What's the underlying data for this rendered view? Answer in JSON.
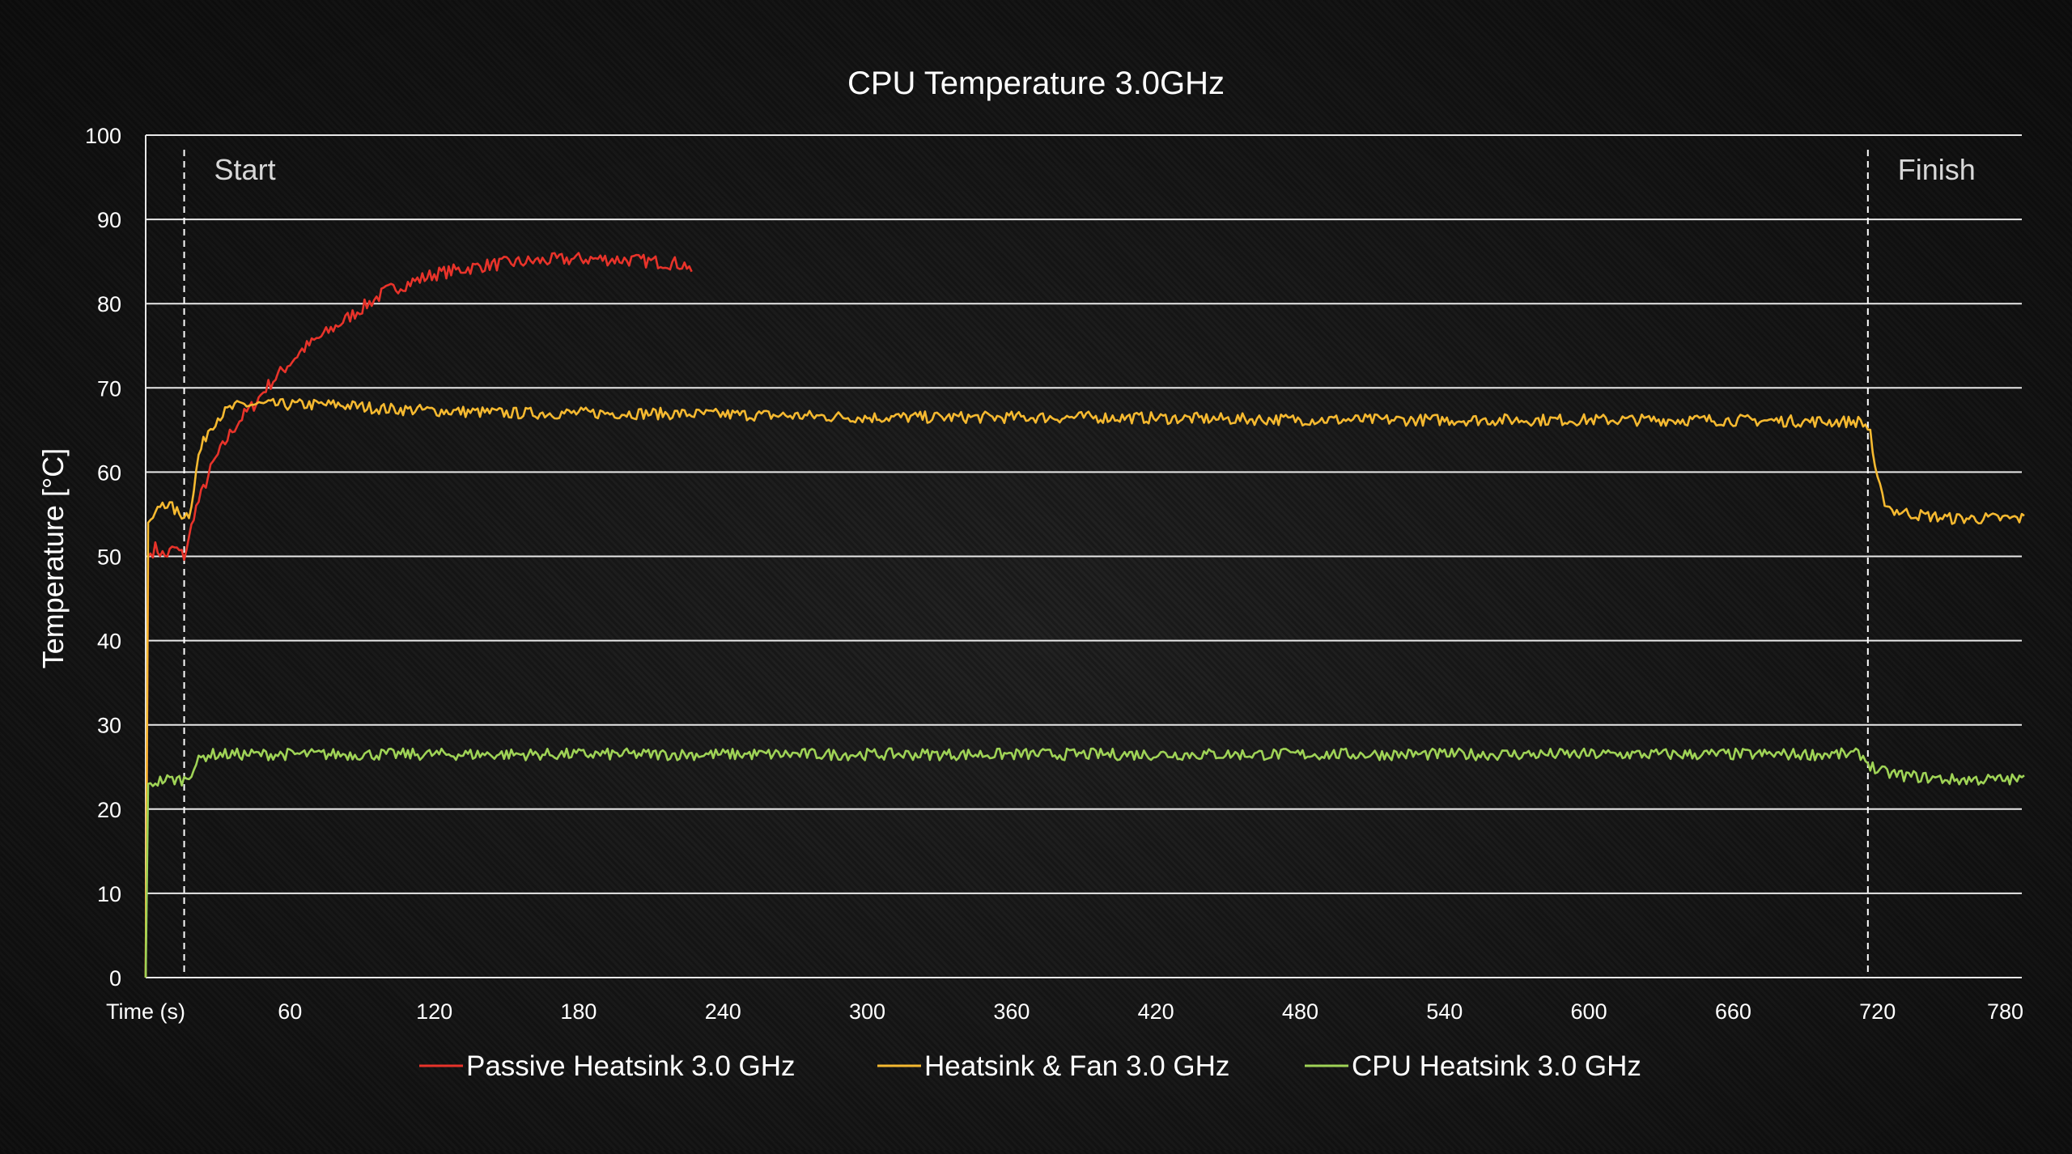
{
  "chart_data": {
    "type": "line",
    "title": "CPU Temperature 3.0GHz",
    "xlabel": "Time (s)",
    "ylabel": "Temperature [°C]",
    "xlim": [
      0,
      780
    ],
    "ylim": [
      0,
      100
    ],
    "x_ticks": [
      60,
      120,
      180,
      240,
      300,
      360,
      420,
      480,
      540,
      600,
      660,
      720,
      780
    ],
    "y_ticks": [
      0,
      10,
      20,
      30,
      40,
      50,
      60,
      70,
      80,
      90,
      100
    ],
    "grid": "horizontal",
    "legend_position": "bottom",
    "annotations": [
      {
        "text": "Start",
        "x": 16
      },
      {
        "text": "Finish",
        "x": 716
      }
    ],
    "series": [
      {
        "name": "Passive Heatsink 3.0 GHz",
        "color": "#e8332a",
        "points": [
          [
            0,
            0
          ],
          [
            1,
            50
          ],
          [
            4,
            51
          ],
          [
            8,
            50
          ],
          [
            12,
            51
          ],
          [
            16,
            50
          ],
          [
            18,
            52
          ],
          [
            20,
            55
          ],
          [
            24,
            58
          ],
          [
            28,
            61
          ],
          [
            32,
            63
          ],
          [
            36,
            65
          ],
          [
            40,
            66.5
          ],
          [
            45,
            68
          ],
          [
            50,
            70
          ],
          [
            55,
            71.5
          ],
          [
            60,
            73
          ],
          [
            65,
            74.5
          ],
          [
            70,
            75.5
          ],
          [
            75,
            76.5
          ],
          [
            80,
            77.5
          ],
          [
            85,
            78.5
          ],
          [
            90,
            79.5
          ],
          [
            95,
            80.5
          ],
          [
            100,
            81.5
          ],
          [
            105,
            82
          ],
          [
            110,
            82.5
          ],
          [
            115,
            83
          ],
          [
            120,
            83.5
          ],
          [
            130,
            84
          ],
          [
            140,
            84.5
          ],
          [
            150,
            84.8
          ],
          [
            160,
            85
          ],
          [
            170,
            85.2
          ],
          [
            180,
            85.3
          ],
          [
            190,
            85.3
          ],
          [
            200,
            85.2
          ],
          [
            210,
            85
          ],
          [
            220,
            84.8
          ],
          [
            226,
            84.5
          ],
          [
            227,
            83
          ]
        ]
      },
      {
        "name": "Heatsink & Fan 3.0 GHz",
        "color": "#f5b930",
        "points": [
          [
            0,
            0
          ],
          [
            1,
            54
          ],
          [
            4,
            55
          ],
          [
            7,
            56.5
          ],
          [
            10,
            56
          ],
          [
            14,
            55
          ],
          [
            18,
            55
          ],
          [
            20,
            58
          ],
          [
            22,
            62
          ],
          [
            26,
            65
          ],
          [
            30,
            66.5
          ],
          [
            35,
            67.5
          ],
          [
            40,
            68
          ],
          [
            50,
            68
          ],
          [
            60,
            68
          ],
          [
            80,
            68
          ],
          [
            100,
            67.5
          ],
          [
            150,
            67
          ],
          [
            200,
            67
          ],
          [
            250,
            66.8
          ],
          [
            300,
            66.5
          ],
          [
            350,
            66.5
          ],
          [
            400,
            66.5
          ],
          [
            450,
            66.3
          ],
          [
            500,
            66.2
          ],
          [
            550,
            66.2
          ],
          [
            600,
            66.2
          ],
          [
            650,
            66.2
          ],
          [
            700,
            66
          ],
          [
            713,
            66
          ],
          [
            717,
            65
          ],
          [
            719,
            60
          ],
          [
            722,
            57
          ],
          [
            726,
            55.5
          ],
          [
            735,
            55
          ],
          [
            750,
            54.5
          ],
          [
            765,
            54.5
          ],
          [
            775,
            54.5
          ],
          [
            781,
            54.5
          ]
        ]
      },
      {
        "name": "CPU Heatsink 3.0 GHz",
        "color": "#9fd356",
        "points": [
          [
            0,
            0
          ],
          [
            1,
            23
          ],
          [
            8,
            23.5
          ],
          [
            16,
            23.5
          ],
          [
            18,
            24
          ],
          [
            20,
            25
          ],
          [
            23,
            26
          ],
          [
            26,
            26.5
          ],
          [
            30,
            26.5
          ],
          [
            60,
            26.5
          ],
          [
            100,
            26.5
          ],
          [
            200,
            26.5
          ],
          [
            300,
            26.5
          ],
          [
            400,
            26.5
          ],
          [
            500,
            26.5
          ],
          [
            600,
            26.5
          ],
          [
            700,
            26.5
          ],
          [
            713,
            26.5
          ],
          [
            716,
            25.5
          ],
          [
            720,
            24.5
          ],
          [
            730,
            24
          ],
          [
            750,
            23.5
          ],
          [
            781,
            23.5
          ]
        ]
      }
    ]
  }
}
